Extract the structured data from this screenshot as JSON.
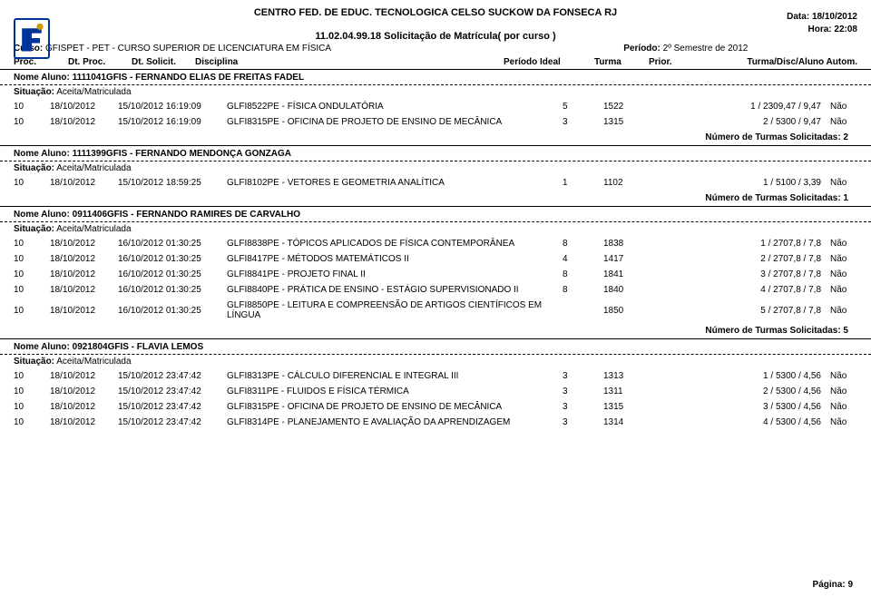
{
  "header": {
    "institution": "CENTRO FED. DE EDUC. TECNOLOGICA CELSO SUCKOW DA FONSECA RJ",
    "report_code": "11.02.04.99.18 Solicitação de Matrícula( por curso )",
    "date_label": "Data:",
    "date_value": "18/10/2012",
    "time_label": "Hora:",
    "time_value": "22:08"
  },
  "curso": {
    "label": "Curso:",
    "value": "GFISPET - PET - CURSO SUPERIOR DE LICENCIATURA EM FÍSICA",
    "periodo_label": "Período:",
    "periodo_value": "2º Semestre de 2012"
  },
  "columns": {
    "proc": "Proc.",
    "dtproc": "Dt. Proc.",
    "dtsolic": "Dt. Solicit.",
    "disciplina": "Disciplina",
    "periodo_ideal": "Período Ideal",
    "turma": "Turma",
    "prior": "Prior.",
    "turma_disc": "Turma/Disc/Aluno  Autom."
  },
  "labels": {
    "nome_aluno": "Nome Aluno:",
    "situacao": "Situação:",
    "situacao_val": "Aceita/Matriculada",
    "turmas_sol": "Número de Turmas Solicitadas:",
    "pagina": "Página:",
    "pagina_num": "9"
  },
  "students": [
    {
      "name": "1111041GFIS - FERNANDO ELIAS DE FREITAS FADEL",
      "rows": [
        {
          "proc": "10",
          "d1": "18/10/2012",
          "d2": "15/10/2012 16:19:09",
          "disc": "GLFI8522PE - FÍSICA ONDULATÓRIA",
          "pi": "5",
          "turma": "1522",
          "score": "1 / 2309,47 / 9,47",
          "auto": "Não"
        },
        {
          "proc": "10",
          "d1": "18/10/2012",
          "d2": "15/10/2012 16:19:09",
          "disc": "GLFI8315PE - OFICINA DE PROJETO DE ENSINO DE MECÂNICA",
          "pi": "3",
          "turma": "1315",
          "score": "2 / 5300 / 9,47",
          "auto": "Não"
        }
      ],
      "solic": "2"
    },
    {
      "name": "1111399GFIS - FERNANDO MENDONÇA GONZAGA",
      "rows": [
        {
          "proc": "10",
          "d1": "18/10/2012",
          "d2": "15/10/2012 18:59:25",
          "disc": "GLFI8102PE - VETORES E GEOMETRIA ANALÍTICA",
          "pi": "1",
          "turma": "1102",
          "score": "1 / 5100 / 3,39",
          "auto": "Não"
        }
      ],
      "solic": "1"
    },
    {
      "name": "0911406GFIS - FERNANDO RAMIRES DE CARVALHO",
      "rows": [
        {
          "proc": "10",
          "d1": "18/10/2012",
          "d2": "16/10/2012 01:30:25",
          "disc": "GLFI8838PE - TÓPICOS APLICADOS DE FÍSICA CONTEMPORÂNEA",
          "pi": "8",
          "turma": "1838",
          "score": "1 / 2707,8 / 7,8",
          "auto": "Não"
        },
        {
          "proc": "10",
          "d1": "18/10/2012",
          "d2": "16/10/2012 01:30:25",
          "disc": "GLFI8417PE - MÉTODOS MATEMÁTICOS II",
          "pi": "4",
          "turma": "1417",
          "score": "2 / 2707,8 / 7,8",
          "auto": "Não"
        },
        {
          "proc": "10",
          "d1": "18/10/2012",
          "d2": "16/10/2012 01:30:25",
          "disc": "GLFI8841PE - PROJETO FINAL II",
          "pi": "8",
          "turma": "1841",
          "score": "3 / 2707,8 / 7,8",
          "auto": "Não"
        },
        {
          "proc": "10",
          "d1": "18/10/2012",
          "d2": "16/10/2012 01:30:25",
          "disc": "GLFI8840PE - PRÁTICA DE ENSINO - ESTÁGIO SUPERVISIONADO II",
          "pi": "8",
          "turma": "1840",
          "score": "4 / 2707,8 / 7,8",
          "auto": "Não"
        },
        {
          "proc": "10",
          "d1": "18/10/2012",
          "d2": "16/10/2012 01:30:25",
          "disc": "GLFI8850PE - LEITURA E COMPREENSÃO DE ARTIGOS CIENTÍFICOS EM LÍNGUA",
          "pi": "",
          "turma": "1850",
          "score": "5 / 2707,8 / 7,8",
          "auto": "Não"
        }
      ],
      "solic": "5"
    },
    {
      "name": "0921804GFIS - FLAVIA LEMOS",
      "rows": [
        {
          "proc": "10",
          "d1": "18/10/2012",
          "d2": "15/10/2012 23:47:42",
          "disc": "GLFI8313PE - CÁLCULO DIFERENCIAL E INTEGRAL III",
          "pi": "3",
          "turma": "1313",
          "score": "1 / 5300 / 4,56",
          "auto": "Não"
        },
        {
          "proc": "10",
          "d1": "18/10/2012",
          "d2": "15/10/2012 23:47:42",
          "disc": "GLFI8311PE - FLUIDOS E FÍSICA TÉRMICA",
          "pi": "3",
          "turma": "1311",
          "score": "2 / 5300 / 4,56",
          "auto": "Não"
        },
        {
          "proc": "10",
          "d1": "18/10/2012",
          "d2": "15/10/2012 23:47:42",
          "disc": "GLFI8315PE - OFICINA DE PROJETO DE ENSINO DE MECÂNICA",
          "pi": "3",
          "turma": "1315",
          "score": "3 / 5300 / 4,56",
          "auto": "Não"
        },
        {
          "proc": "10",
          "d1": "18/10/2012",
          "d2": "15/10/2012 23:47:42",
          "disc": "GLFI8314PE - PLANEJAMENTO E AVALIAÇÃO DA APRENDIZAGEM",
          "pi": "3",
          "turma": "1314",
          "score": "4 / 5300 / 4,56",
          "auto": "Não"
        }
      ],
      "solic": null
    }
  ]
}
